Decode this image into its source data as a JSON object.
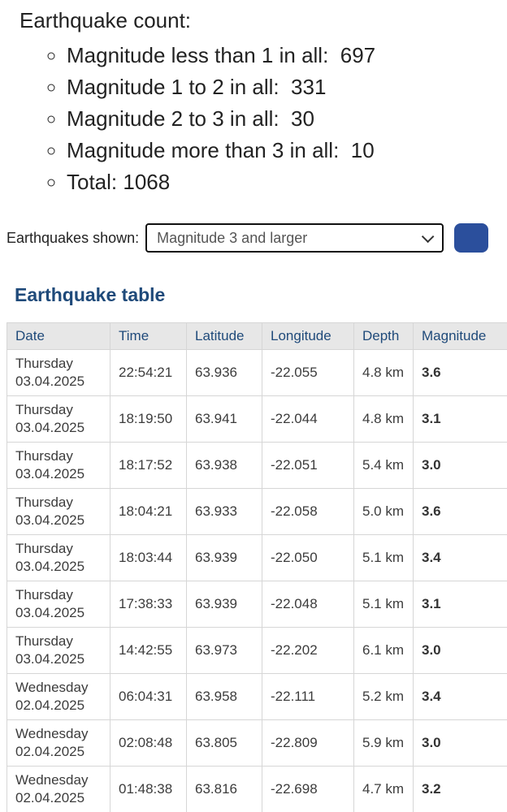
{
  "counts": {
    "title": "Earthquake count:",
    "items": [
      "Magnitude less than 1 in all:  697",
      "Magnitude 1 to 2 in all:  331",
      "Magnitude 2 to 3 in all:  30",
      "Magnitude more than 3 in all:  10",
      "Total: 1068"
    ]
  },
  "filter": {
    "label": "Earthquakes shown:",
    "selected": "Magnitude 3 and larger"
  },
  "table": {
    "title": "Earthquake table",
    "headers": [
      "Date",
      "Time",
      "Latitude",
      "Longitude",
      "Depth",
      "Magnitude"
    ],
    "rows": [
      {
        "day": "Thursday",
        "date": "03.04.2025",
        "time": "22:54:21",
        "lat": "63.936",
        "lon": "-22.055",
        "depth": "4.8 km",
        "mag": "3.6"
      },
      {
        "day": "Thursday",
        "date": "03.04.2025",
        "time": "18:19:50",
        "lat": "63.941",
        "lon": "-22.044",
        "depth": "4.8 km",
        "mag": "3.1"
      },
      {
        "day": "Thursday",
        "date": "03.04.2025",
        "time": "18:17:52",
        "lat": "63.938",
        "lon": "-22.051",
        "depth": "5.4 km",
        "mag": "3.0"
      },
      {
        "day": "Thursday",
        "date": "03.04.2025",
        "time": "18:04:21",
        "lat": "63.933",
        "lon": "-22.058",
        "depth": "5.0 km",
        "mag": "3.6"
      },
      {
        "day": "Thursday",
        "date": "03.04.2025",
        "time": "18:03:44",
        "lat": "63.939",
        "lon": "-22.050",
        "depth": "5.1 km",
        "mag": "3.4"
      },
      {
        "day": "Thursday",
        "date": "03.04.2025",
        "time": "17:38:33",
        "lat": "63.939",
        "lon": "-22.048",
        "depth": "5.1 km",
        "mag": "3.1"
      },
      {
        "day": "Thursday",
        "date": "03.04.2025",
        "time": "14:42:55",
        "lat": "63.973",
        "lon": "-22.202",
        "depth": "6.1 km",
        "mag": "3.0"
      },
      {
        "day": "Wednesday",
        "date": "02.04.2025",
        "time": "06:04:31",
        "lat": "63.958",
        "lon": "-22.111",
        "depth": "5.2 km",
        "mag": "3.4"
      },
      {
        "day": "Wednesday",
        "date": "02.04.2025",
        "time": "02:08:48",
        "lat": "63.805",
        "lon": "-22.809",
        "depth": "5.9 km",
        "mag": "3.0"
      },
      {
        "day": "Wednesday",
        "date": "02.04.2025",
        "time": "01:48:38",
        "lat": "63.816",
        "lon": "-22.698",
        "depth": "4.7 km",
        "mag": "3.2"
      }
    ]
  },
  "colors": {
    "heading_blue": "#1f4a7a",
    "table_header_bg": "#e7e7e7",
    "body_text": "#3c3c3c",
    "apply_button_blue": "#2b4f9c",
    "bottom_bar_blue": "#2c3890",
    "select_border": "#111111"
  }
}
